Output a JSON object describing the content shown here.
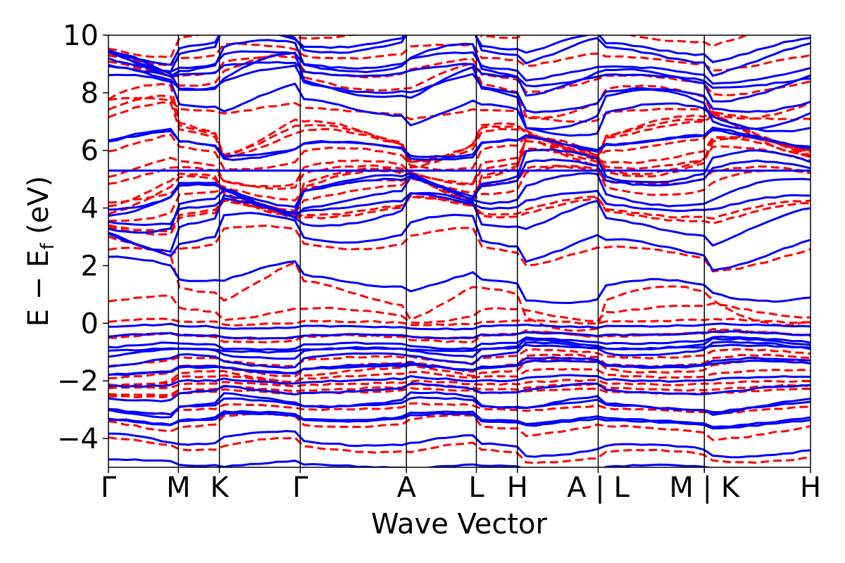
{
  "chart_data": {
    "type": "line",
    "title": "",
    "xlabel": "Wave Vector",
    "ylabel_main": "E − E",
    "ylabel_sub": "f",
    "ylabel_unit": " (eV)",
    "ylim": [
      -5,
      10
    ],
    "yticks": [
      -4,
      -2,
      0,
      2,
      4,
      6,
      8,
      10
    ],
    "ytick_labels": [
      "−4",
      "−2",
      "0",
      "2",
      "4",
      "6",
      "8",
      "10"
    ],
    "x_segments": [
      {
        "from": "Γ",
        "to": "M",
        "length": 0.58
      },
      {
        "from": "M",
        "to": "K",
        "length": 0.34
      },
      {
        "from": "K",
        "to": "Γ",
        "length": 0.67
      },
      {
        "from": "Γ",
        "to": "A",
        "length": 0.88
      },
      {
        "from": "A",
        "to": "L",
        "length": 0.58
      },
      {
        "from": "L",
        "to": "H",
        "length": 0.34
      },
      {
        "from": "H",
        "to": "A",
        "length": 0.67
      },
      {
        "from": "L",
        "to": "M",
        "length": 0.88
      },
      {
        "from": "K",
        "to": "H",
        "length": 0.88
      }
    ],
    "high_symmetry_points": [
      {
        "pos": 0.0,
        "label": "Γ"
      },
      {
        "pos": 0.58,
        "label": "M"
      },
      {
        "pos": 0.92,
        "label": "K"
      },
      {
        "pos": 1.59,
        "label": "Γ"
      },
      {
        "pos": 2.47,
        "label": "A"
      },
      {
        "pos": 3.05,
        "label": "L"
      },
      {
        "pos": 3.39,
        "label": "H"
      },
      {
        "pos": 4.06,
        "label": "A | L"
      },
      {
        "pos": 4.94,
        "label": "M | K"
      },
      {
        "pos": 5.82,
        "label": "H"
      }
    ],
    "series": [
      {
        "style": "solid",
        "color": "#0000ff",
        "flat_bands": [
          5.3
        ],
        "sample_bands_at_gamma": [
          -4.2,
          -3.4,
          -2.9,
          -2.4,
          -2.0,
          -1.5,
          -1.1,
          -0.7,
          -0.4,
          -0.1,
          1.5,
          2.8,
          3.4,
          4.8,
          6.3,
          8.1,
          9.4
        ]
      },
      {
        "style": "dashed",
        "color": "#ff0000",
        "sample_bands_at_gamma": [
          -4.4,
          -3.6,
          -3.0,
          -2.3,
          -1.7,
          -1.2,
          -0.4,
          0.5,
          1.2,
          2.6,
          3.8,
          5.4,
          6.7,
          8.6,
          9.2
        ]
      }
    ]
  }
}
